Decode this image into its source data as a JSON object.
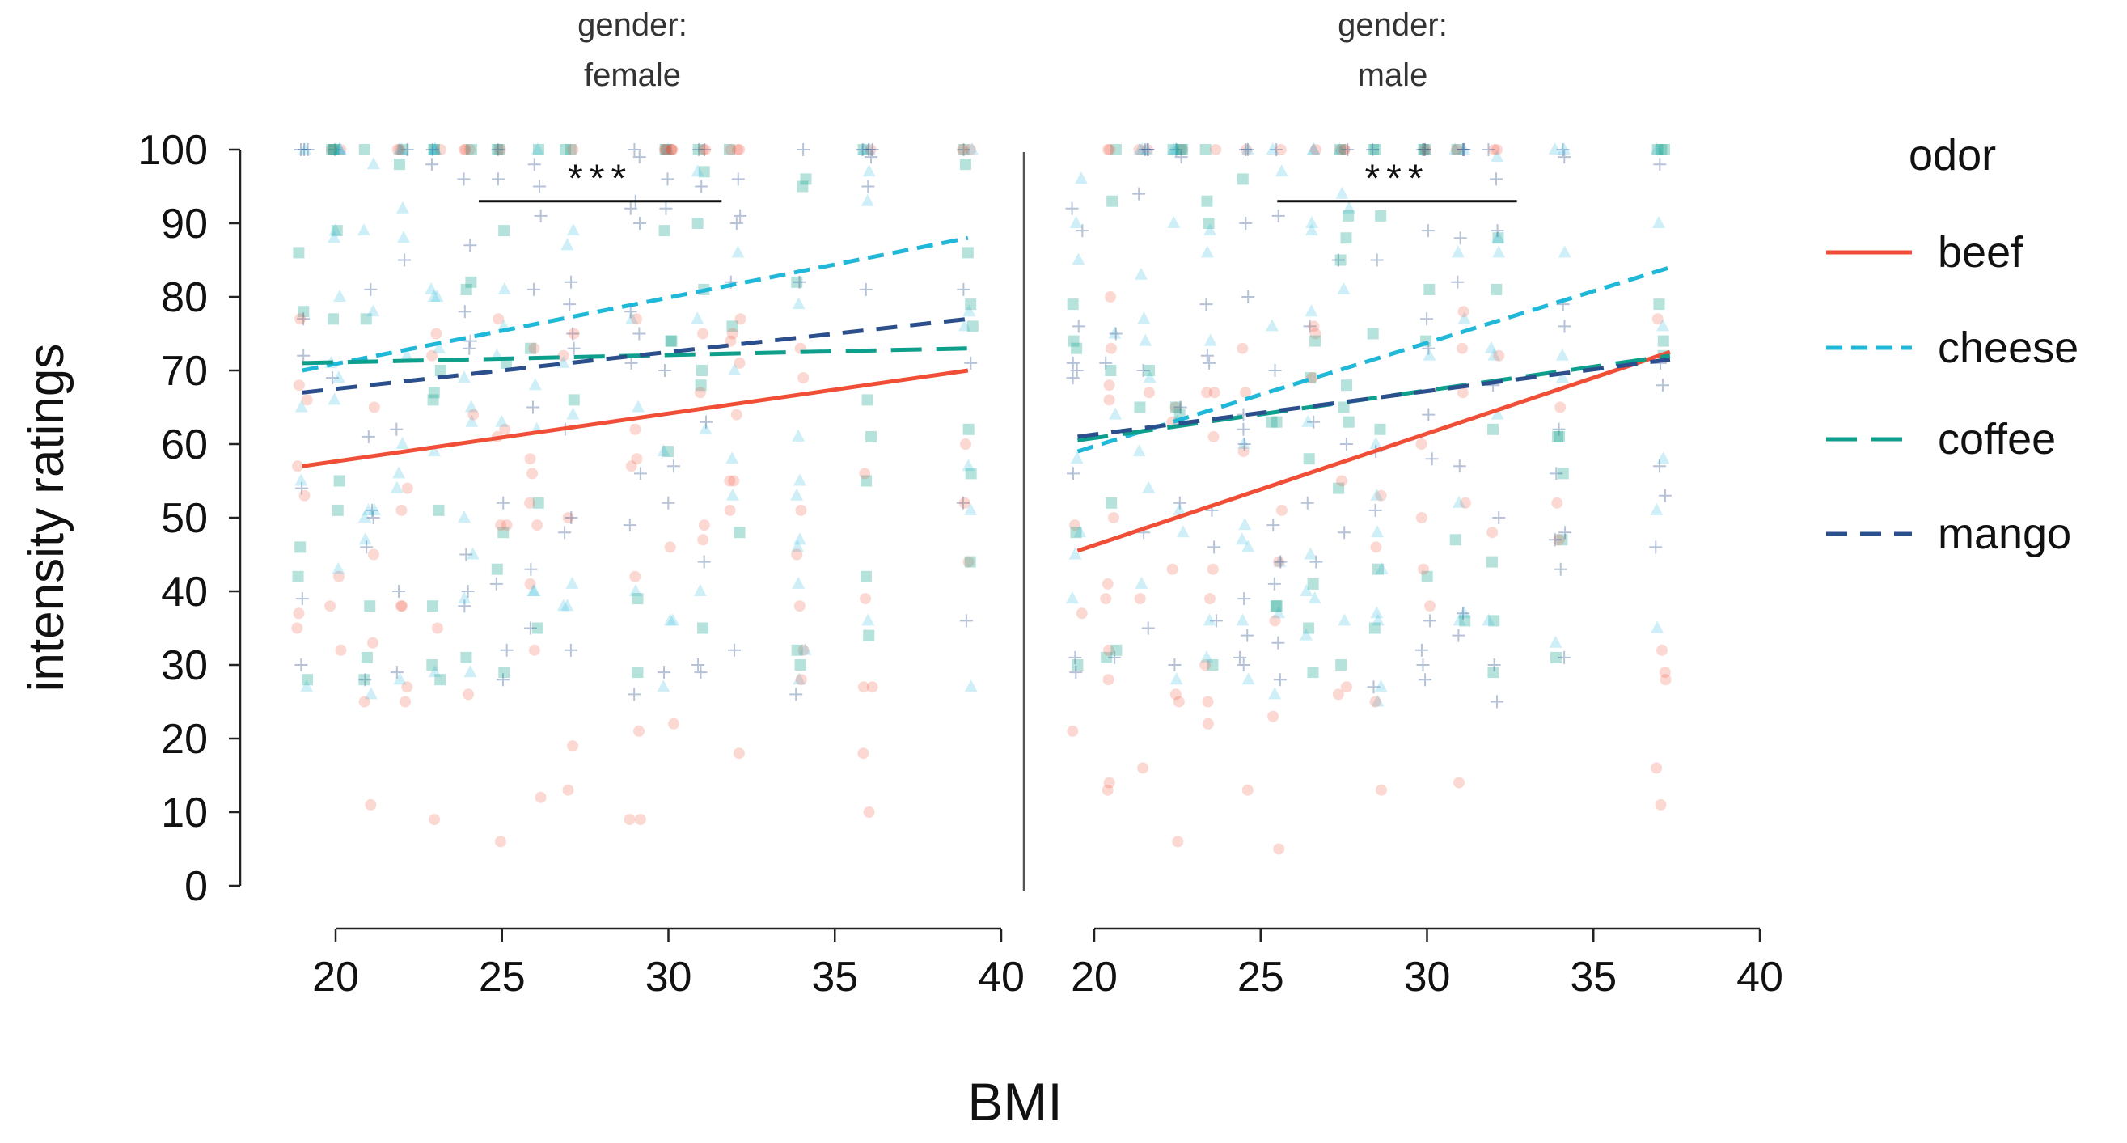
{
  "chart_data": {
    "type": "scatter",
    "xlabel": "BMI",
    "ylabel": "intensity ratings",
    "xlim": [
      19,
      39
    ],
    "ylim": [
      0,
      100
    ],
    "x_ticks": [
      "20",
      "25",
      "30",
      "35",
      "40"
    ],
    "y_ticks": [
      "0",
      "10",
      "20",
      "30",
      "40",
      "50",
      "60",
      "70",
      "80",
      "90",
      "100"
    ],
    "legend": {
      "title": "odor",
      "position": "right",
      "entries": [
        {
          "name": "beef",
          "color": "#f04e37",
          "dash": "solid"
        },
        {
          "name": "cheese",
          "color": "#1fb8d9",
          "dash": "short-dash"
        },
        {
          "name": "coffee",
          "color": "#0e9e8c",
          "dash": "long-dash"
        },
        {
          "name": "mango",
          "color": "#2b4f8c",
          "dash": "dash"
        }
      ]
    },
    "panels": [
      {
        "title_line1": "gender:",
        "title_line2": "female",
        "x_range": [
          19,
          39
        ],
        "significance": {
          "label": "***",
          "x_start": 24.3,
          "x_end": 31.6,
          "y": 93
        },
        "fit_lines": [
          {
            "name": "beef",
            "x": [
              19,
              39
            ],
            "y": [
              57,
              70
            ]
          },
          {
            "name": "cheese",
            "x": [
              19,
              39
            ],
            "y": [
              70,
              88
            ]
          },
          {
            "name": "coffee",
            "x": [
              19,
              39
            ],
            "y": [
              71,
              73
            ]
          },
          {
            "name": "mango",
            "x": [
              19,
              39
            ],
            "y": [
              67,
              77
            ]
          }
        ],
        "point_columns": [
          19,
          20,
          21,
          22,
          23,
          24,
          25,
          26,
          27,
          29,
          30,
          31,
          32,
          34,
          36,
          39
        ]
      },
      {
        "title_line1": "gender:",
        "title_line2": "male",
        "x_range": [
          19.5,
          37.3
        ],
        "significance": {
          "label": "***",
          "x_start": 25.5,
          "x_end": 32.7,
          "y": 93
        },
        "fit_lines": [
          {
            "name": "beef",
            "x": [
              19.5,
              37.3
            ],
            "y": [
              45.5,
              72.5
            ]
          },
          {
            "name": "cheese",
            "x": [
              19.5,
              37.3
            ],
            "y": [
              59,
              84
            ]
          },
          {
            "name": "coffee",
            "x": [
              19.5,
              37.3
            ],
            "y": [
              60.5,
              72
            ]
          },
          {
            "name": "mango",
            "x": [
              19.5,
              37.3
            ],
            "y": [
              61,
              71.5
            ]
          }
        ],
        "point_columns": [
          19.5,
          20.5,
          21.5,
          22.5,
          23.5,
          24.5,
          25.5,
          26.5,
          27.5,
          28.5,
          30,
          31,
          32,
          34,
          37
        ]
      }
    ]
  }
}
